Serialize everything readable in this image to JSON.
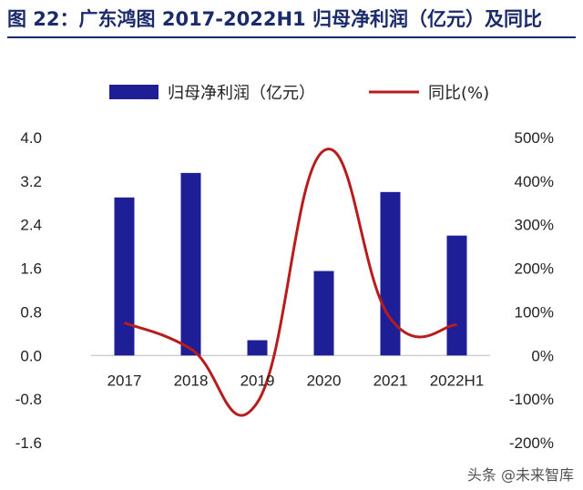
{
  "figure_title": "图 22：广东鸿图 2017-2022H1 归母净利润（亿元）及同比",
  "watermark": "头条 @未来智库",
  "colors": {
    "bar": "#1e1e96",
    "line": "#b81c1c",
    "title": "#1a2a6b"
  },
  "chart_data": {
    "type": "bar",
    "title": "",
    "categories": [
      "2017",
      "2018",
      "2019",
      "2020",
      "2021",
      "2022H1"
    ],
    "series": [
      {
        "name": "归母净利润（亿元）",
        "type": "bar",
        "axis": "left",
        "values": [
          2.9,
          3.35,
          0.28,
          1.55,
          3.0,
          2.2
        ]
      },
      {
        "name": "同比(%)",
        "type": "line",
        "axis": "right",
        "smooth": true,
        "values": [
          75,
          15,
          -108,
          470,
          85,
          70
        ]
      }
    ],
    "left_axis": {
      "min": -1.6,
      "max": 4.0,
      "ticks": [
        "-1.6",
        "-0.8",
        "0.0",
        "0.8",
        "1.6",
        "2.4",
        "3.2",
        "4.0"
      ]
    },
    "right_axis": {
      "min": -200,
      "max": 500,
      "ticks": [
        "-200%",
        "-100%",
        "0%",
        "100%",
        "200%",
        "300%",
        "400%",
        "500%"
      ]
    },
    "legend_position": "top",
    "grid": false
  }
}
